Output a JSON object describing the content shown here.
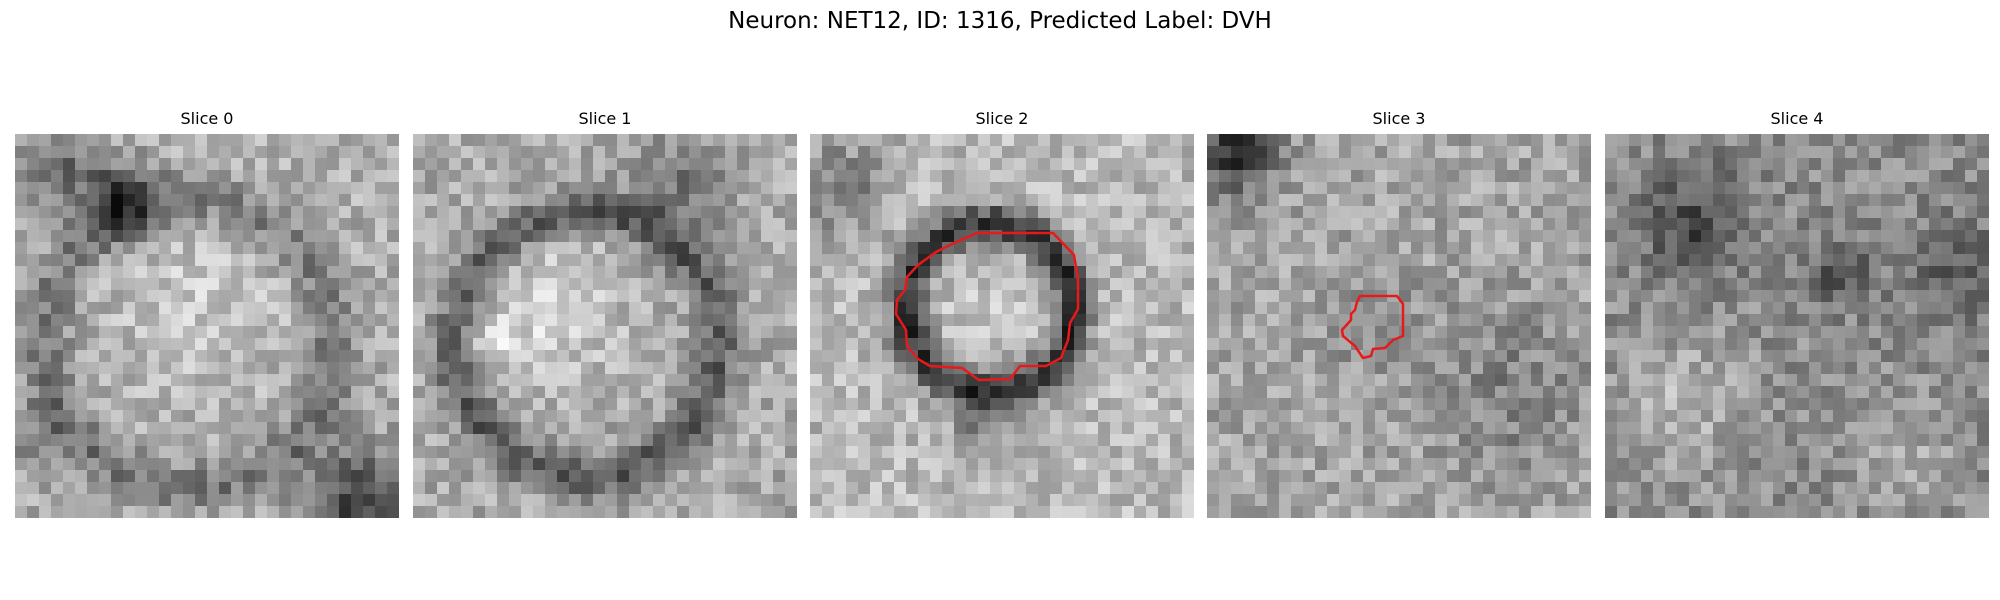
{
  "figure": {
    "title": "Neuron: NET12, ID: 1316, Predicted Label: DVH"
  },
  "colors": {
    "background": "#ffffff",
    "contour": "#e8191b"
  },
  "colormap": "grayscale",
  "slices": [
    {
      "label": "Slice 0",
      "has_contour": false
    },
    {
      "label": "Slice 1",
      "has_contour": false
    },
    {
      "label": "Slice 2",
      "has_contour": true
    },
    {
      "label": "Slice 3",
      "has_contour": true
    },
    {
      "label": "Slice 4",
      "has_contour": false
    }
  ]
}
